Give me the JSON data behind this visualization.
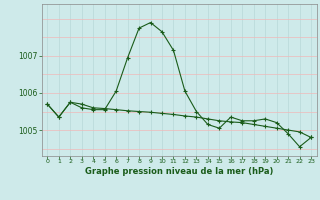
{
  "title": "Graphe pression niveau de la mer (hPa)",
  "bg_color": "#ceeaea",
  "grid_color_v": "#b8d8d8",
  "grid_color_h": "#f0b8b8",
  "line_color": "#1a5c1a",
  "x_ticks": [
    0,
    1,
    2,
    3,
    4,
    5,
    6,
    7,
    8,
    9,
    10,
    11,
    12,
    13,
    14,
    15,
    16,
    17,
    18,
    19,
    20,
    21,
    22,
    23
  ],
  "y_ticks": [
    1005,
    1006,
    1007
  ],
  "ylim": [
    1004.3,
    1008.4
  ],
  "xlim": [
    -0.5,
    23.5
  ],
  "series1": [
    1005.7,
    1005.35,
    1005.75,
    1005.6,
    1005.55,
    1005.55,
    1006.05,
    1006.95,
    1007.75,
    1007.9,
    1007.65,
    1007.15,
    1006.05,
    1005.5,
    1005.15,
    1005.05,
    1005.35,
    1005.25,
    1005.25,
    1005.3,
    1005.2,
    1004.9,
    1004.55,
    1004.8
  ],
  "series2": [
    1005.7,
    1005.35,
    1005.75,
    1005.7,
    1005.6,
    1005.58,
    1005.55,
    1005.52,
    1005.5,
    1005.48,
    1005.45,
    1005.42,
    1005.38,
    1005.35,
    1005.3,
    1005.25,
    1005.22,
    1005.2,
    1005.15,
    1005.1,
    1005.05,
    1005.0,
    1004.95,
    1004.8
  ]
}
